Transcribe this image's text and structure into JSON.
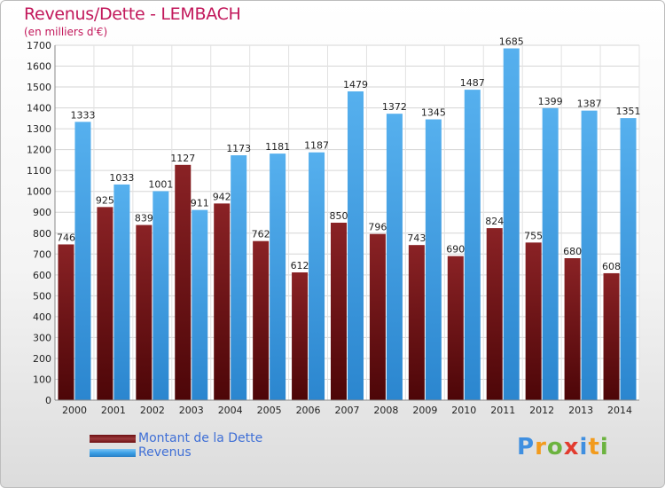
{
  "title": "Revenus/Dette - LEMBACH",
  "subtitle": "(en milliers d'€)",
  "logo": {
    "text": "Proxiti",
    "letters": [
      "P",
      "r",
      "o",
      "x",
      "i",
      "t",
      "i"
    ]
  },
  "colors": {
    "title": "#c2185b",
    "dette": "#7a1518",
    "revenus": "#3a9fe6",
    "axis_text": "#222222",
    "legend_text": "#3f6fd6"
  },
  "legend": [
    {
      "label": "Montant de la Dette",
      "color": "#6d0f12"
    },
    {
      "label": "Revenus",
      "color": "#3a9fe6"
    }
  ],
  "chart_data": {
    "type": "bar",
    "title": "Revenus/Dette - LEMBACH",
    "subtitle": "(en milliers d'€)",
    "categories": [
      "2000",
      "2001",
      "2002",
      "2003",
      "2004",
      "2005",
      "2006",
      "2007",
      "2008",
      "2009",
      "2010",
      "2011",
      "2012",
      "2013",
      "2014"
    ],
    "series": [
      {
        "name": "Montant de la Dette",
        "values": [
          746,
          925,
          839,
          1127,
          942,
          762,
          612,
          850,
          796,
          743,
          690,
          824,
          755,
          680,
          608
        ]
      },
      {
        "name": "Revenus",
        "values": [
          1333,
          1033,
          1001,
          911,
          1173,
          1181,
          1187,
          1479,
          1372,
          1345,
          1487,
          1685,
          1399,
          1387,
          1351
        ]
      }
    ],
    "ylim": [
      0,
      1700
    ],
    "yticks": [
      0,
      100,
      200,
      300,
      400,
      500,
      600,
      700,
      800,
      900,
      1000,
      1100,
      1200,
      1300,
      1400,
      1500,
      1600,
      1700
    ],
    "grid": true,
    "legend_position": "bottom-left"
  }
}
